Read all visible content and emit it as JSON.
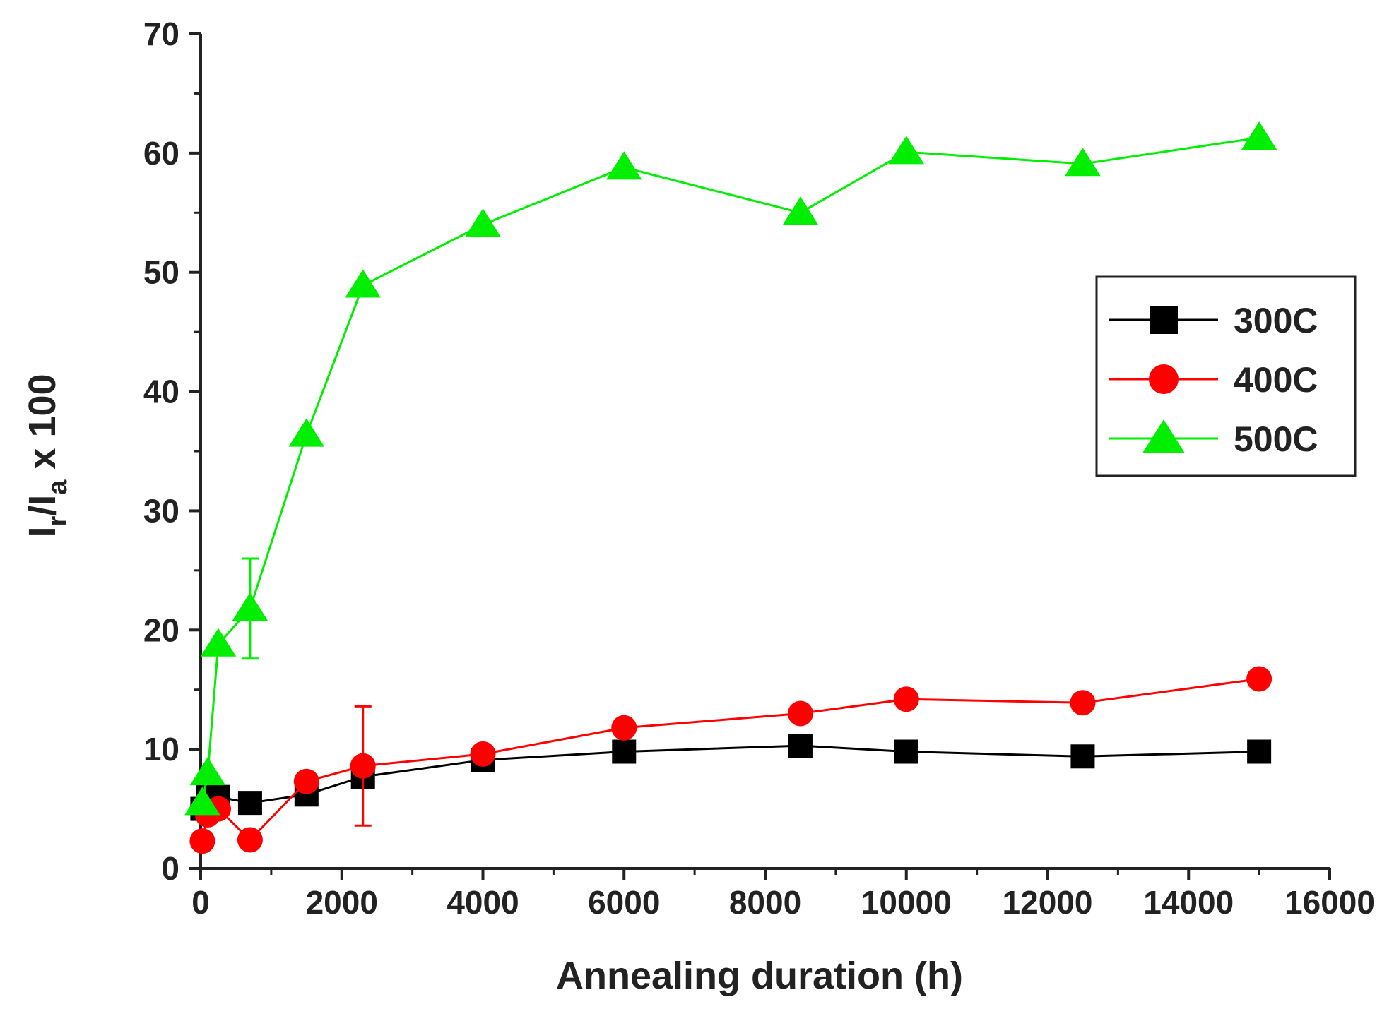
{
  "chart_data": {
    "type": "line",
    "xlabel": "Annealing duration (h)",
    "ylabel": {
      "main": "I",
      "sub1": "r",
      "mid": "/I",
      "sub2": "a",
      "tail": " x 100"
    },
    "xlim": [
      0,
      16000
    ],
    "ylim": [
      0,
      70
    ],
    "x_ticks": [
      "0",
      "2000",
      "4000",
      "6000",
      "8000",
      "10000",
      "12000",
      "14000",
      "16000"
    ],
    "y_ticks": [
      "0",
      "10",
      "20",
      "30",
      "40",
      "50",
      "60",
      "70"
    ],
    "grid": false,
    "legend_position": "right",
    "series": [
      {
        "name": "300C",
        "color": "#000000",
        "marker": "square",
        "x": [
          24,
          100,
          250,
          700,
          1500,
          2300,
          4000,
          6000,
          8500,
          10000,
          12500,
          15000
        ],
        "y": [
          5.0,
          6.0,
          6.0,
          5.5,
          6.2,
          7.7,
          9.1,
          9.8,
          10.3,
          9.8,
          9.4,
          9.8
        ]
      },
      {
        "name": "400C",
        "color": "#ff0000",
        "marker": "circle",
        "x": [
          24,
          100,
          250,
          700,
          1500,
          2300,
          4000,
          6000,
          8500,
          10000,
          12500,
          15000
        ],
        "y": [
          2.3,
          4.5,
          5.0,
          2.4,
          7.3,
          8.6,
          9.6,
          11.8,
          13.0,
          14.2,
          13.9,
          15.9
        ],
        "error_bars": [
          {
            "x": 2300,
            "low": 3.6,
            "high": 13.6
          }
        ]
      },
      {
        "name": "500C",
        "color": "#00ee00",
        "marker": "triangle",
        "x": [
          24,
          100,
          250,
          700,
          1500,
          2300,
          4000,
          6000,
          8500,
          10000,
          12500,
          15000
        ],
        "y": [
          5.5,
          8.0,
          18.8,
          21.8,
          36.4,
          48.9,
          54.0,
          58.8,
          55.0,
          60.1,
          59.1,
          61.3
        ],
        "error_bars": [
          {
            "x": 700,
            "low": 17.6,
            "high": 26.0
          }
        ]
      }
    ]
  }
}
